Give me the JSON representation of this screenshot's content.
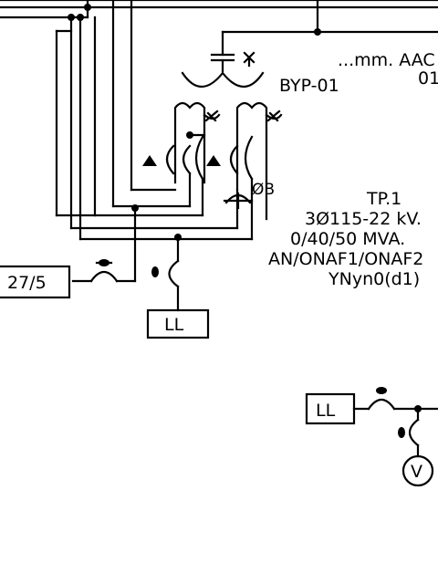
{
  "conductor_label": "...mm. AAC",
  "conductor_suffix": "01",
  "bypass_label": "BYP-01",
  "transformer": {
    "name": "TP.1",
    "line1": "3Ø115-22 kV.",
    "line2": "0/40/50 MVA.",
    "line3": "AN/ONAF1/ONAF2",
    "line4": "YNyn0(d1)"
  },
  "ct_label": "27/5",
  "ll_label_upper": "LL",
  "ll_label_lower": "LL",
  "voltmeter_label": "V",
  "pt_label": "ØB"
}
